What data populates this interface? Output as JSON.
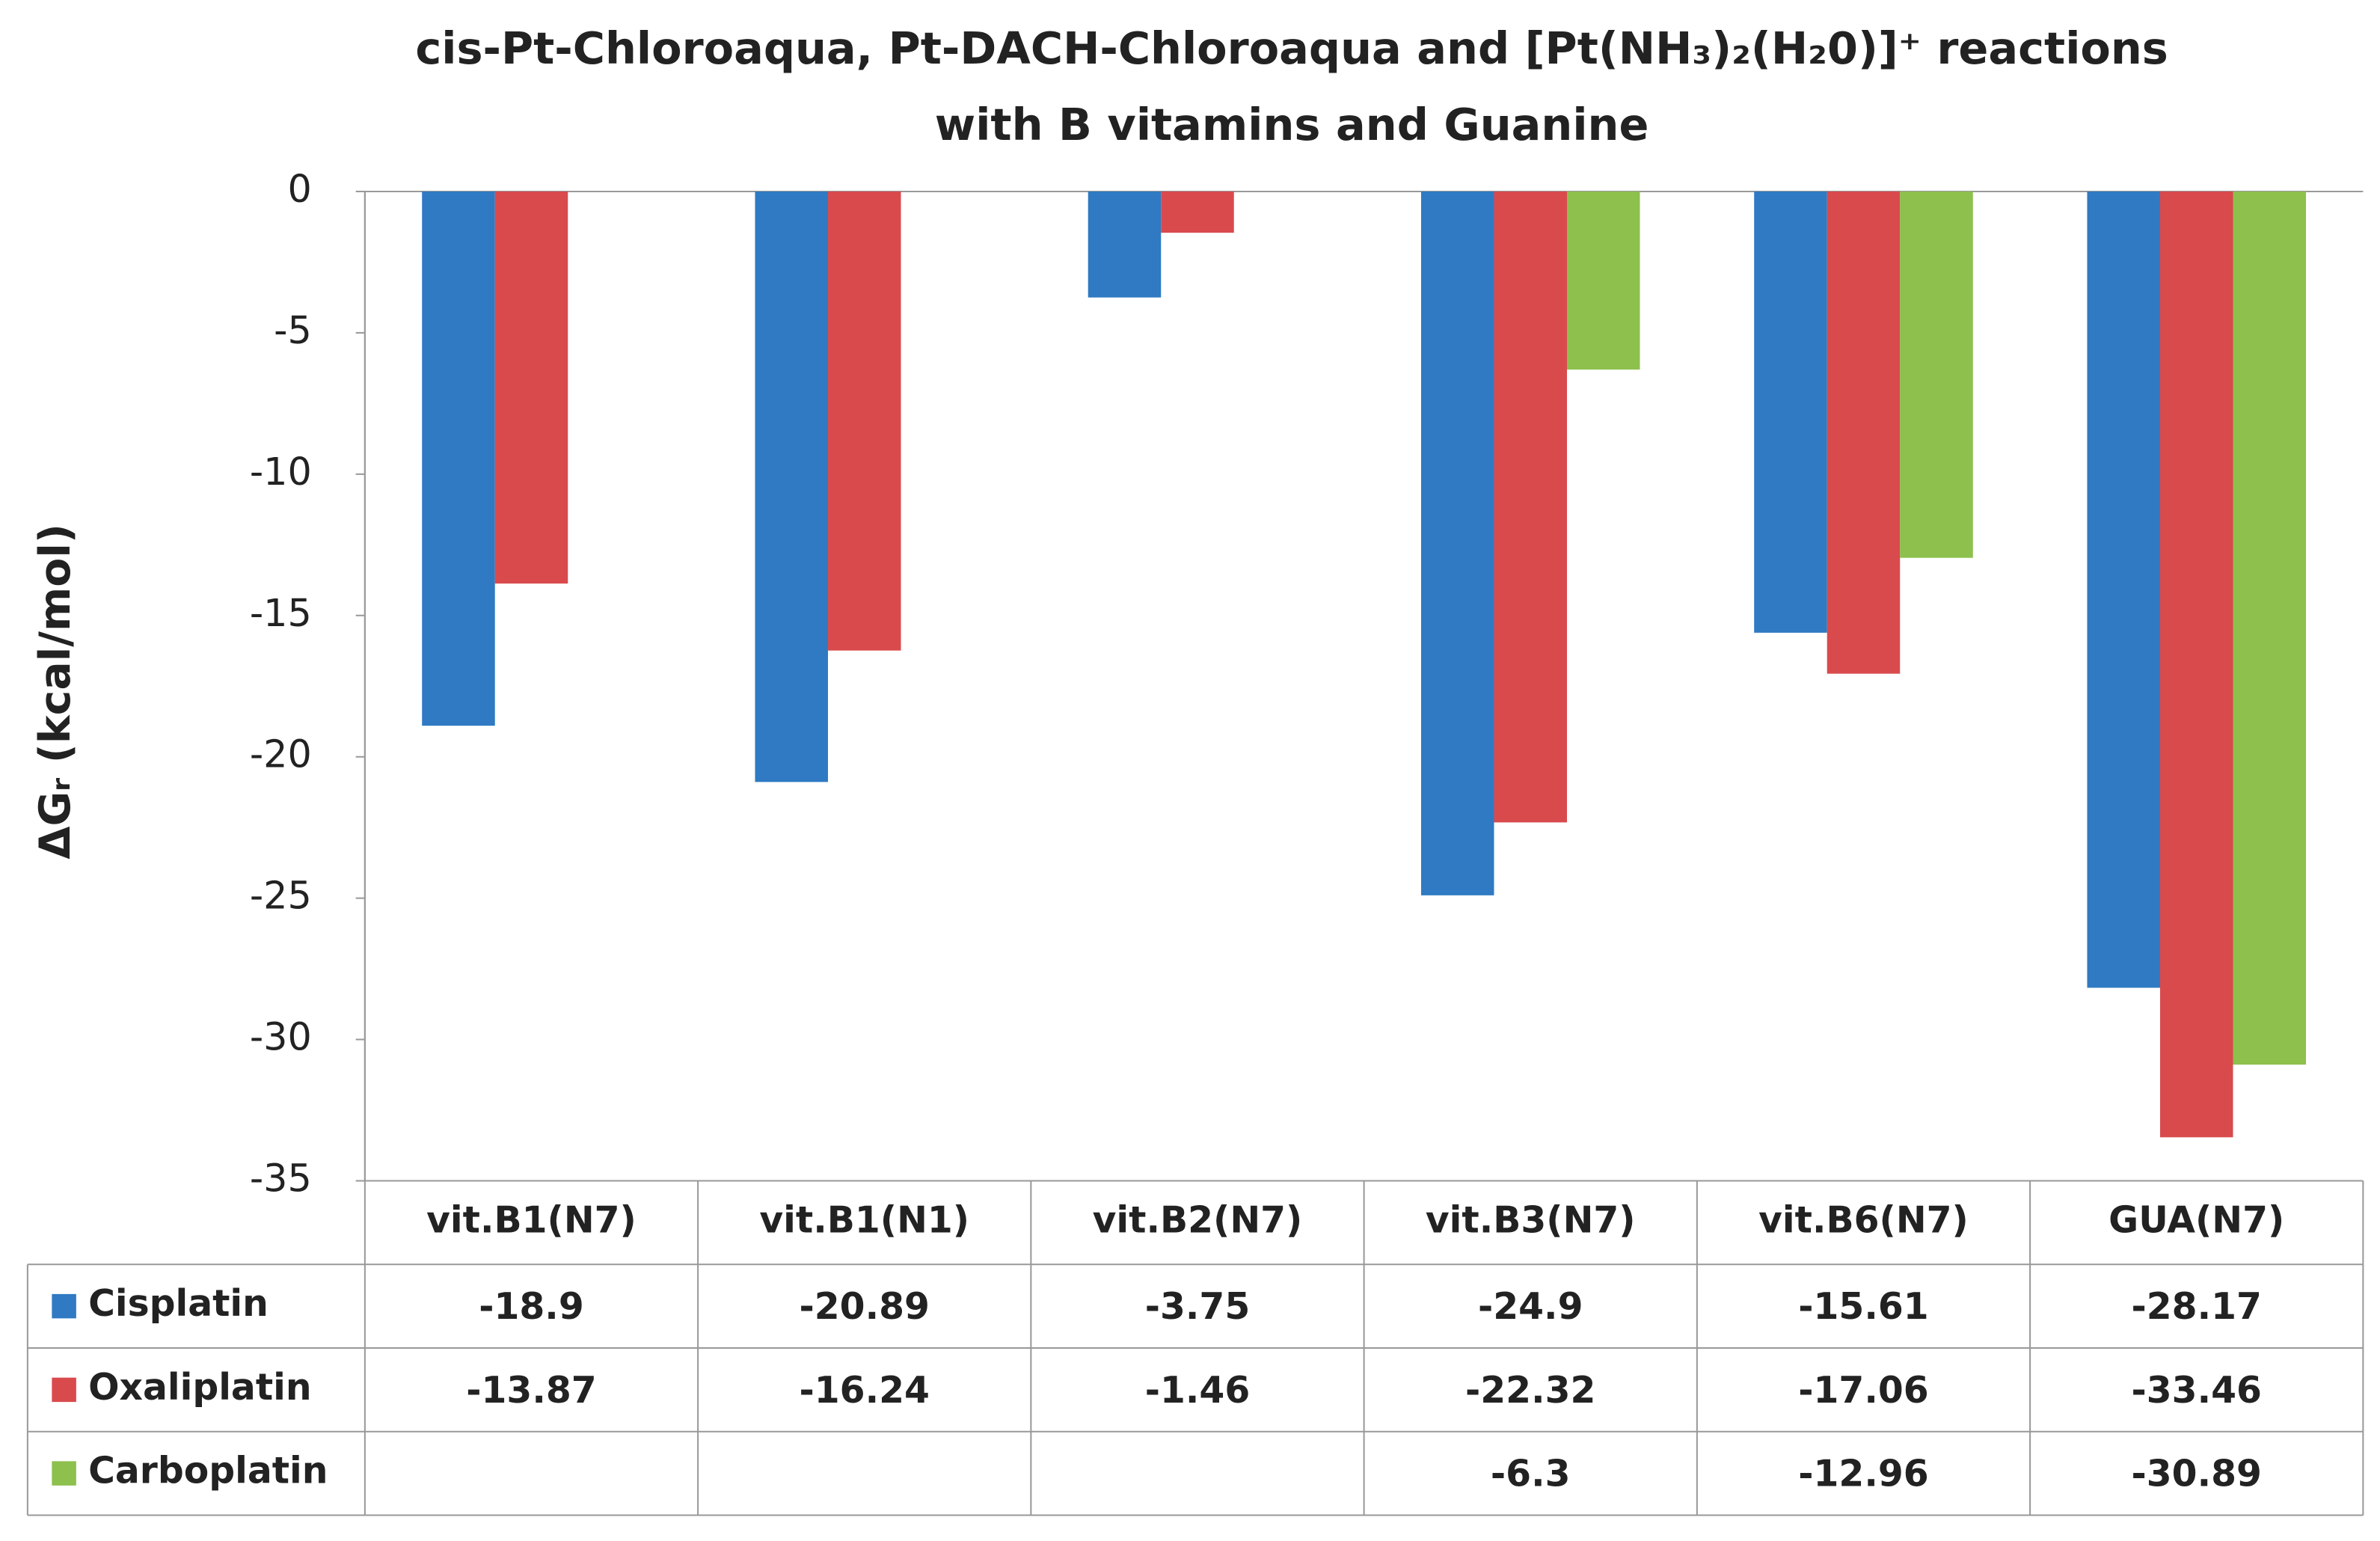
{
  "chart_data": {
    "type": "bar",
    "title": [
      "cis-Pt-Chloroaqua, Pt-DACH-Chloroaqua and [Pt(NH₃)₂(H₂0)]⁺ reactions",
      "with B vitamins and Guanine"
    ],
    "y_label": "ΔGᵣ (kcal/mol)",
    "categories": [
      "vit.B1(N7)",
      "vit.B1(N1)",
      "vit.B2(N7)",
      "vit.B3(N7)",
      "vit.B6(N7)",
      "GUA(N7)"
    ],
    "series": [
      {
        "name": "Cisplatin",
        "color": "#2f7ac2",
        "values": [
          -18.9,
          -20.89,
          -3.75,
          -24.9,
          -15.61,
          -28.17
        ]
      },
      {
        "name": "Oxaliplatin",
        "color": "#d94a4d",
        "values": [
          -13.87,
          -16.24,
          -1.46,
          -22.32,
          -17.06,
          -33.46
        ]
      },
      {
        "name": "Carboplatin",
        "color": "#8dc04d",
        "values": [
          null,
          null,
          null,
          -6.3,
          -12.96,
          -30.89
        ]
      }
    ],
    "ylim": [
      -35,
      0
    ],
    "yticks": [
      0,
      -5,
      -10,
      -15,
      -20,
      -25,
      -30,
      -35
    ],
    "grid": false,
    "data_table": true
  }
}
